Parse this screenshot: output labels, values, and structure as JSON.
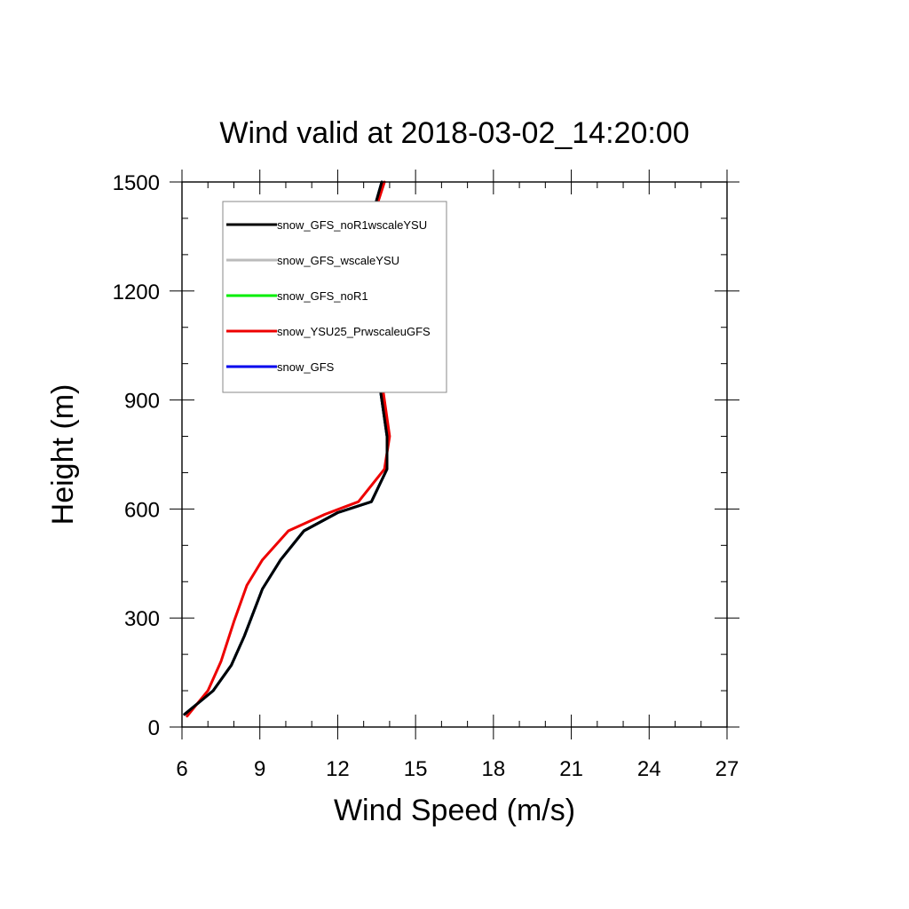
{
  "chart_data": {
    "type": "line",
    "title": "Wind valid at 2018-03-02_14:20:00",
    "xlabel": "Wind Speed (m/s)",
    "ylabel": "Height (m)",
    "xlim": [
      6,
      27
    ],
    "ylim": [
      0,
      1500
    ],
    "xticks": [
      6,
      9,
      12,
      15,
      18,
      21,
      24,
      27
    ],
    "yticks": [
      0,
      300,
      600,
      900,
      1200,
      1500
    ],
    "xtick_labels": [
      "6",
      "9",
      "12",
      "15",
      "18",
      "21",
      "24",
      "27"
    ],
    "ytick_labels": [
      "0",
      "300",
      "600",
      "900",
      "1200",
      "1500"
    ],
    "grid": false,
    "legend_placement": "top-left",
    "series": [
      {
        "name": "snow_GFS_noR1wscaleYSU",
        "color": "#000000",
        "points": [
          [
            6.1,
            35
          ],
          [
            7.2,
            100
          ],
          [
            7.9,
            170
          ],
          [
            8.4,
            250
          ],
          [
            9.1,
            380
          ],
          [
            9.8,
            460
          ],
          [
            10.7,
            540
          ],
          [
            12.0,
            590
          ],
          [
            13.3,
            620
          ],
          [
            13.9,
            710
          ],
          [
            13.9,
            800
          ],
          [
            13.6,
            950
          ],
          [
            13.2,
            1130
          ],
          [
            13.0,
            1200
          ],
          [
            13.0,
            1300
          ],
          [
            13.3,
            1400
          ],
          [
            13.7,
            1500
          ]
        ]
      },
      {
        "name": "snow_GFS_wscaleYSU",
        "color": "#bbbbbb",
        "points": [
          [
            6.1,
            35
          ],
          [
            7.2,
            100
          ],
          [
            7.9,
            170
          ],
          [
            8.4,
            250
          ],
          [
            9.1,
            380
          ],
          [
            9.8,
            460
          ],
          [
            10.7,
            540
          ],
          [
            12.0,
            590
          ],
          [
            13.3,
            620
          ],
          [
            13.9,
            710
          ],
          [
            13.9,
            800
          ],
          [
            13.6,
            950
          ],
          [
            13.2,
            1130
          ],
          [
            13.0,
            1200
          ],
          [
            13.0,
            1300
          ],
          [
            13.3,
            1400
          ],
          [
            13.7,
            1500
          ]
        ]
      },
      {
        "name": "snow_GFS_noR1",
        "color": "#00ee00",
        "points": [
          [
            6.1,
            35
          ],
          [
            7.2,
            100
          ],
          [
            7.9,
            170
          ],
          [
            8.4,
            250
          ],
          [
            9.1,
            380
          ],
          [
            9.8,
            460
          ],
          [
            10.7,
            540
          ],
          [
            12.0,
            590
          ],
          [
            13.3,
            620
          ],
          [
            13.9,
            710
          ],
          [
            13.9,
            800
          ],
          [
            13.6,
            950
          ],
          [
            13.2,
            1130
          ],
          [
            13.0,
            1200
          ],
          [
            13.0,
            1300
          ],
          [
            13.3,
            1400
          ],
          [
            13.7,
            1500
          ]
        ]
      },
      {
        "name": "snow_YSU25_PrwscaleuGFS",
        "color": "#ee0000",
        "points": [
          [
            6.2,
            30
          ],
          [
            7.0,
            100
          ],
          [
            7.5,
            180
          ],
          [
            8.0,
            290
          ],
          [
            8.5,
            390
          ],
          [
            9.1,
            460
          ],
          [
            10.1,
            540
          ],
          [
            11.5,
            585
          ],
          [
            12.8,
            620
          ],
          [
            13.8,
            710
          ],
          [
            14.0,
            800
          ],
          [
            13.7,
            950
          ],
          [
            13.2,
            1130
          ],
          [
            12.95,
            1200
          ],
          [
            13.0,
            1300
          ],
          [
            13.35,
            1400
          ],
          [
            13.8,
            1500
          ]
        ]
      },
      {
        "name": "snow_GFS",
        "color": "#0000ee",
        "points": [
          [
            6.1,
            35
          ],
          [
            7.2,
            100
          ],
          [
            7.9,
            170
          ],
          [
            8.4,
            250
          ],
          [
            9.1,
            380
          ],
          [
            9.8,
            460
          ],
          [
            10.7,
            540
          ],
          [
            12.0,
            590
          ],
          [
            13.3,
            620
          ],
          [
            13.9,
            710
          ],
          [
            13.9,
            800
          ],
          [
            13.6,
            950
          ],
          [
            13.2,
            1130
          ],
          [
            13.0,
            1200
          ],
          [
            13.0,
            1300
          ],
          [
            13.3,
            1400
          ],
          [
            13.7,
            1500
          ]
        ]
      }
    ],
    "draw_order": [
      1,
      2,
      4,
      3,
      0
    ]
  }
}
